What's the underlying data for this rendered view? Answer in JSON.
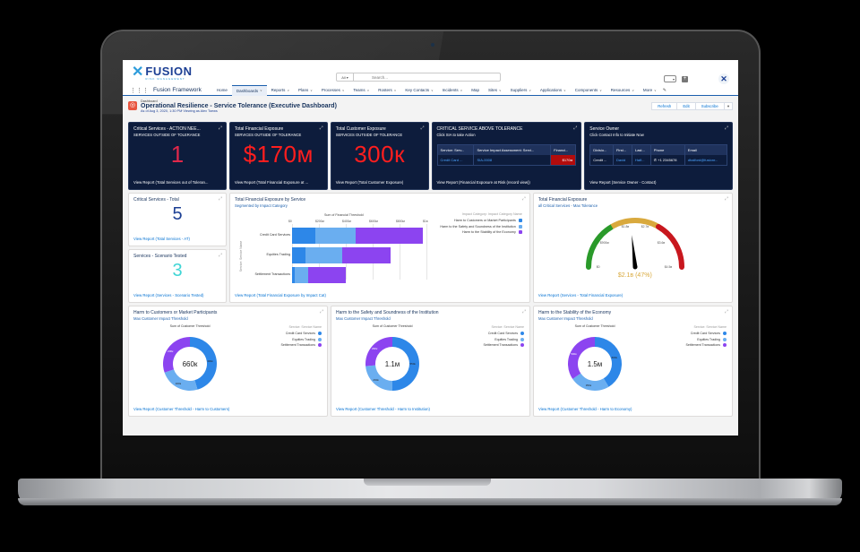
{
  "colors": {
    "brand_navy": "#1c3f94",
    "dark_card": "#0d1c3c",
    "seg_customers": "#2d87e8",
    "seg_institution": "#6aaef0",
    "seg_economy": "#8c44f0",
    "gauge_green": "#2a9a2a",
    "gauge_yellow": "#d9a93d",
    "gauge_red": "#c8171e",
    "alert_red": "#ff1e1e"
  },
  "header": {
    "logo_word": "FUSION",
    "logo_sub": "RISK MANAGEMENT",
    "search_scope": "All",
    "search_placeholder": "Search...",
    "app_name": "Fusion Framework"
  },
  "nav": {
    "items": [
      {
        "label": "Home",
        "dropdown": false,
        "active": false
      },
      {
        "label": "Dashboards",
        "dropdown": true,
        "active": true
      },
      {
        "label": "Reports",
        "dropdown": true,
        "active": false
      },
      {
        "label": "Plans",
        "dropdown": true,
        "active": false
      },
      {
        "label": "Processes",
        "dropdown": true,
        "active": false
      },
      {
        "label": "Teams",
        "dropdown": true,
        "active": false
      },
      {
        "label": "Rosters",
        "dropdown": true,
        "active": false
      },
      {
        "label": "Key Contacts",
        "dropdown": true,
        "active": false
      },
      {
        "label": "Incidents",
        "dropdown": true,
        "active": false
      },
      {
        "label": "Map",
        "dropdown": false,
        "active": false
      },
      {
        "label": "Sites",
        "dropdown": true,
        "active": false
      },
      {
        "label": "Suppliers",
        "dropdown": true,
        "active": false
      },
      {
        "label": "Applications",
        "dropdown": true,
        "active": false
      },
      {
        "label": "Components",
        "dropdown": true,
        "active": false
      },
      {
        "label": "Resources",
        "dropdown": true,
        "active": false
      },
      {
        "label": "More",
        "dropdown": true,
        "active": false
      }
    ]
  },
  "page": {
    "kind": "Dashboard",
    "title": "Operational Resilience - Service Tolerance (Executive Dashboard)",
    "as_of": "As of Aug 3, 2020, 1:30 PM·Viewing as Alex Toews",
    "buttons": {
      "refresh": "Refresh",
      "edit": "Edit",
      "subscribe": "Subscribe"
    }
  },
  "row1": {
    "critical": {
      "title": "Critical Services - ACTION NEE...",
      "sub": "SERVICES OUTSIDE OF TOLERANCE",
      "value": "1",
      "footer": "View Report (Total Services out of Toleran..."
    },
    "financial": {
      "title": "Total Financial Exposure",
      "sub": "SERVICES OUTSIDE OF TOLERANCE",
      "value": "$170м",
      "footer": "View Report (Total Financial Exposure at ..."
    },
    "customer": {
      "title": "Total Customer Exposure",
      "sub": "SERVICES OUTSIDE OF TOLERANCE",
      "value": "300к",
      "footer": "View Report (Total Customer Exposure)"
    },
    "above": {
      "title": "CRITICAL SERVICE ABOVE TOLERANCE",
      "sub": "Click SIA to take Action",
      "columns": [
        "Service: Serv...",
        "Service Impact Assessment: Servi...",
        "Financi..."
      ],
      "row": [
        "Credit Card ...",
        "SIA-0008",
        "$170м"
      ],
      "footer": "View Report (Financial Exposure at Risk (record view))"
    },
    "owner": {
      "title": "Service Owner",
      "sub": "Click Contact Info to Initiate Now",
      "columns": [
        "Divisio...",
        "First...",
        "Last...",
        "Phone",
        "Email"
      ],
      "row": [
        "Credit ...",
        "David",
        "Half...",
        "+1 2345678",
        "dhalford@fusionr..."
      ],
      "footer": "View Report (Service Owner - Contact)"
    }
  },
  "row2": {
    "total": {
      "title": "Critical Services - Total",
      "value": "5",
      "footer": "View Report (Total Services - AT)"
    },
    "tested": {
      "title": "Services - Scenario Tested",
      "value": "3",
      "footer": "View Report (Services - Scenario Tested)"
    },
    "bar": {
      "title": "Total Financial Exposure by Service",
      "sub": "Segmented by Impact Category",
      "footer": "View Report (Total Financial Exposure by Impact Cat)"
    },
    "gauge": {
      "title": "Total Financial Exposure",
      "sub": "all Critical Services - Max Tolerance",
      "footer": "View Report (Services - Total Financial Exposure)",
      "labels": [
        "$0",
        "$900м",
        "$1.8в",
        "$2.7в",
        "$3.6в",
        "$4.5в"
      ],
      "value_text": "$2.1в (47%)"
    }
  },
  "row3": [
    {
      "title": "Harm to Customers or Market Participants",
      "sub": "Max Customer Impact Threshold",
      "footer": "View Report (Customer Threshold - Harm to Customers)",
      "center": "660к",
      "labels": [
        "300к",
        "160к",
        "200к"
      ]
    },
    {
      "title": "Harm to the Safety and Soundness of the Institution",
      "sub": "Max Customer Impact Threshold",
      "footer": "View Report (Customer Threshold - Harm to Institution)",
      "center": "1.1м",
      "labels": [
        "550к",
        "260к",
        "290к"
      ]
    },
    {
      "title": "Harm to the Stability of the Economy",
      "sub": "Max Customer Impact Threshold",
      "footer": "View Report (Customer Threshold - Harm to Economy)",
      "center": "1.5м",
      "labels": [
        "600к",
        "350к",
        "500к"
      ]
    }
  ],
  "donut_common": {
    "axis": "Sum of Customer Threshold",
    "legend_title": "Service: Service Name",
    "legend": [
      "Credit Card Services",
      "Equities Trading",
      "Settlement Transactions"
    ]
  },
  "chart_data": [
    {
      "type": "bar",
      "title": "Total Financial Exposure by Service",
      "subtitle": "Segmented by Impact Category",
      "xlabel": "Sum of Financial Threshold",
      "ylabel": "Service: Service Name",
      "orientation": "horizontal-stacked",
      "x_ticks": [
        "$0",
        "$200м",
        "$400м",
        "$600м",
        "$800м",
        "$1в"
      ],
      "xlim": [
        0,
        1000
      ],
      "categories": [
        "Credit Card Services",
        "Equities Trading",
        "Settlement Transactions"
      ],
      "legend_title": "Impact Category: Impact Category Name",
      "legend_position": "right",
      "series": [
        {
          "name": "Harm to Customers or Market Participants",
          "values": [
            170,
            100,
            20
          ]
        },
        {
          "name": "Harm to the Safety and Soundness of the Institution",
          "values": [
            300,
            270,
            100
          ]
        },
        {
          "name": "Harm to the Stability of the Economy",
          "values": [
            500,
            360,
            280
          ]
        }
      ]
    },
    {
      "type": "gauge",
      "title": "Total Financial Exposure",
      "subtitle": "all Critical Services - Max Tolerance",
      "range": [
        0,
        4.5
      ],
      "unit": "$B",
      "bands": [
        {
          "from": 0,
          "to": 1.5,
          "color": "green"
        },
        {
          "from": 1.5,
          "to": 3.0,
          "color": "yellow"
        },
        {
          "from": 3.0,
          "to": 4.5,
          "color": "red"
        }
      ],
      "value": 2.1,
      "percent": 47
    },
    {
      "type": "pie",
      "title": "Harm to Customers or Market Participants",
      "categories": [
        "Credit Card Services",
        "Equities Trading",
        "Settlement Transactions"
      ],
      "values": [
        300,
        160,
        200
      ],
      "total": 660,
      "unit": "K"
    },
    {
      "type": "pie",
      "title": "Harm to the Safety and Soundness of the Institution",
      "categories": [
        "Credit Card Services",
        "Equities Trading",
        "Settlement Transactions"
      ],
      "values": [
        550,
        260,
        290
      ],
      "total": 1100,
      "unit": "K"
    },
    {
      "type": "pie",
      "title": "Harm to the Stability of the Economy",
      "categories": [
        "Credit Card Services",
        "Equities Trading",
        "Settlement Transactions"
      ],
      "values": [
        600,
        350,
        500
      ],
      "total": 1500,
      "unit": "K"
    }
  ]
}
